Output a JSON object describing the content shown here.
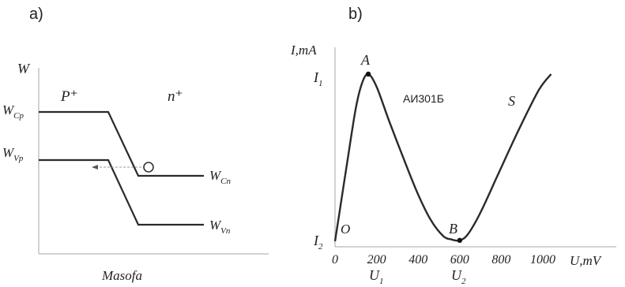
{
  "panel_a": {
    "label": "a)",
    "y_axis_label": "W",
    "x_axis_label": "Masofa",
    "region_left": "P⁺",
    "region_right": "n⁺",
    "band_labels": {
      "wcp": "W",
      "wcp_sub": "Cp",
      "wvp": "W",
      "wvp_sub": "Vp",
      "wcn": "W",
      "wcn_sub": "Cn",
      "wvn": "W",
      "wvn_sub": "Vn"
    }
  },
  "panel_b": {
    "label": "b)",
    "device_label": "АИ301Б",
    "y_axis_label": "I,mA",
    "x_axis_label": "U,mV",
    "y_tick_i1": "I",
    "y_tick_i1_sub": "1",
    "y_tick_i2": "I",
    "y_tick_i2_sub": "2",
    "point_labels": {
      "origin": "O",
      "peak": "A",
      "valley": "B",
      "rise": "S"
    },
    "x_tick_labels": [
      "0",
      "200",
      "400",
      "600",
      "800",
      "1000"
    ],
    "u_labels": {
      "u1": "U",
      "u1_sub": "1",
      "u2": "U",
      "u2_sub": "2"
    },
    "chart_data": {
      "type": "line",
      "series": [
        {
          "x": [
            0,
            20,
            60,
            100,
            130,
            160,
            200,
            260,
            330,
            400,
            460,
            520,
            560,
            600,
            640,
            700,
            780,
            880,
            980,
            1040
          ],
          "y": [
            0,
            1.5,
            4.5,
            7.4,
            8.8,
            9.3,
            8.6,
            6.7,
            4.6,
            2.6,
            1.2,
            0.3,
            0.1,
            0.05,
            0.4,
            1.6,
            3.6,
            6.1,
            8.4,
            9.3
          ]
        }
      ],
      "marked_points": [
        {
          "name": "A",
          "x": 160,
          "y": 9.3
        },
        {
          "name": "B",
          "x": 600,
          "y": 0.05
        }
      ],
      "xlim": [
        0,
        1050
      ],
      "ylim": [
        0,
        10
      ]
    }
  }
}
